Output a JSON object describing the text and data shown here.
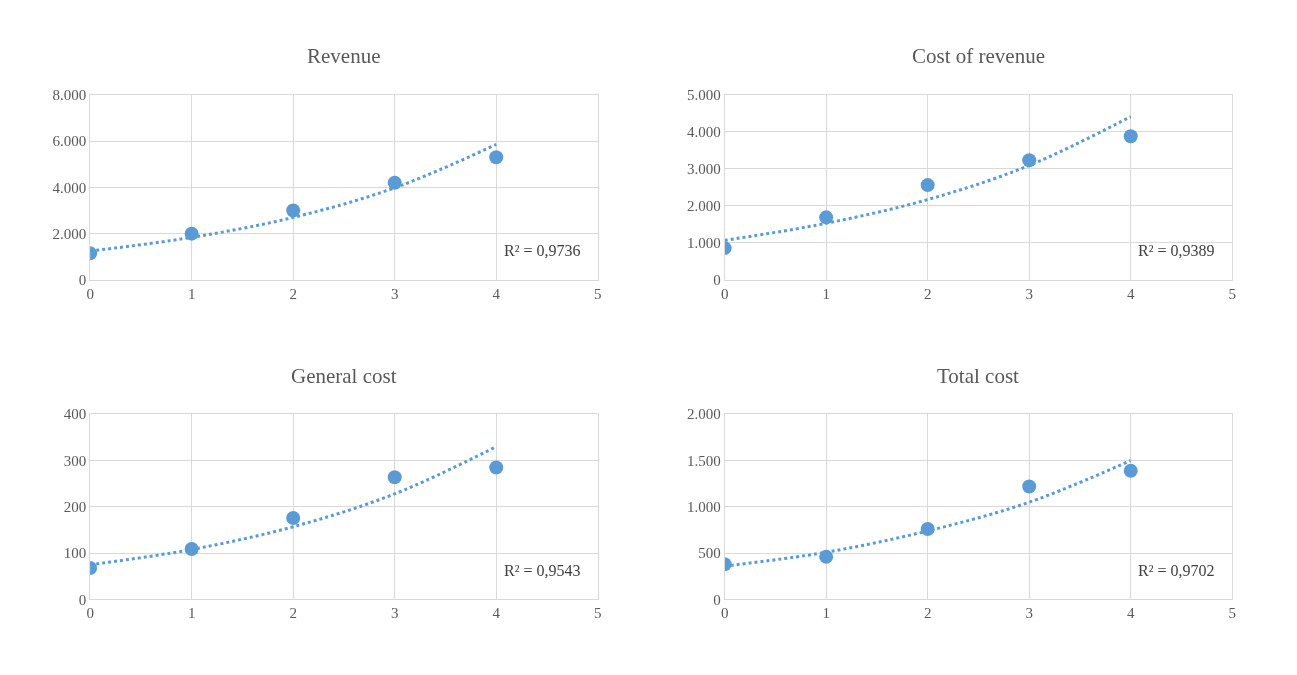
{
  "chart_data": [
    {
      "type": "scatter",
      "title": "Revenue",
      "x": [
        0,
        1,
        2,
        3,
        4
      ],
      "xlim": [
        0,
        5
      ],
      "xticks": [
        0,
        1,
        2,
        3,
        4,
        5
      ],
      "ylim": [
        0,
        8000
      ],
      "yticks": [
        {
          "value": 0,
          "label": "0"
        },
        {
          "value": 2000,
          "label": "2.000"
        },
        {
          "value": 4000,
          "label": "4.000"
        },
        {
          "value": 6000,
          "label": "6.000"
        },
        {
          "value": 8000,
          "label": "8.000"
        }
      ],
      "grid": true,
      "annotations": [
        "R² = 0,9736"
      ],
      "series": [
        {
          "marker": "circle",
          "color": "#5b9bd5",
          "values": [
            1150,
            2000,
            3000,
            4200,
            5300
          ]
        },
        {
          "type": "line",
          "marker": "none",
          "line_style": "dotted",
          "color": "#5b9bd5",
          "values": [
            1250,
            1840,
            2700,
            3980,
            5850
          ]
        }
      ]
    },
    {
      "type": "scatter",
      "title": "Cost of revenue",
      "x": [
        0,
        1,
        2,
        3,
        4
      ],
      "xlim": [
        0,
        5
      ],
      "xticks": [
        0,
        1,
        2,
        3,
        4,
        5
      ],
      "ylim": [
        0,
        5000
      ],
      "yticks": [
        {
          "value": 0,
          "label": "0"
        },
        {
          "value": 1000,
          "label": "1.000"
        },
        {
          "value": 2000,
          "label": "2.000"
        },
        {
          "value": 3000,
          "label": "3.000"
        },
        {
          "value": 4000,
          "label": "4.000"
        },
        {
          "value": 5000,
          "label": "5.000"
        }
      ],
      "grid": true,
      "annotations": [
        "R² = 0,9389"
      ],
      "series": [
        {
          "marker": "circle",
          "color": "#5b9bd5",
          "values": [
            860,
            1690,
            2560,
            3230,
            3880
          ]
        },
        {
          "type": "line",
          "marker": "none",
          "line_style": "dotted",
          "color": "#5b9bd5",
          "values": [
            1070,
            1530,
            2170,
            3090,
            4410
          ]
        }
      ]
    },
    {
      "type": "scatter",
      "title": "General cost",
      "x": [
        0,
        1,
        2,
        3,
        4
      ],
      "xlim": [
        0,
        5
      ],
      "xticks": [
        0,
        1,
        2,
        3,
        4,
        5
      ],
      "ylim": [
        0,
        400
      ],
      "yticks": [
        0,
        100,
        200,
        300,
        400
      ],
      "grid": true,
      "annotations": [
        "R² = 0,9543"
      ],
      "series": [
        {
          "marker": "circle",
          "color": "#5b9bd5",
          "values": [
            68,
            109,
            176,
            264,
            285
          ]
        },
        {
          "type": "line",
          "marker": "none",
          "line_style": "dotted",
          "color": "#5b9bd5",
          "values": [
            75,
            108,
            157,
            228,
            330
          ]
        }
      ]
    },
    {
      "type": "scatter",
      "title": "Total cost",
      "x": [
        0,
        1,
        2,
        3,
        4
      ],
      "xlim": [
        0,
        5
      ],
      "xticks": [
        0,
        1,
        2,
        3,
        4,
        5
      ],
      "ylim": [
        0,
        2000
      ],
      "yticks": [
        {
          "value": 0,
          "label": "0"
        },
        {
          "value": 500,
          "label": "500"
        },
        {
          "value": 1000,
          "label": "1.000"
        },
        {
          "value": 1500,
          "label": "1.500"
        },
        {
          "value": 2000,
          "label": "2.000"
        }
      ],
      "grid": true,
      "annotations": [
        "R² = 0,9702"
      ],
      "series": [
        {
          "marker": "circle",
          "color": "#5b9bd5",
          "values": [
            380,
            460,
            760,
            1220,
            1390
          ]
        },
        {
          "type": "line",
          "marker": "none",
          "line_style": "dotted",
          "color": "#5b9bd5",
          "values": [
            360,
            510,
            740,
            1050,
            1500
          ]
        }
      ]
    }
  ]
}
